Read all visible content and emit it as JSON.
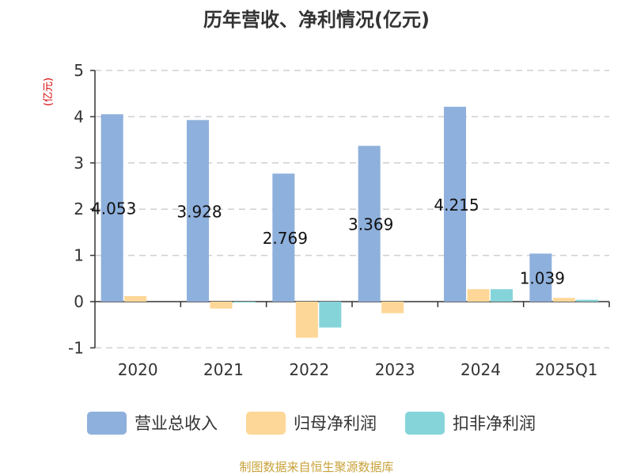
{
  "chart_data": {
    "type": "bar",
    "title": "历年营收、净利情况(亿元)",
    "unit_label": "(亿元)",
    "categories": [
      "2020",
      "2021",
      "2022",
      "2023",
      "2024",
      "2025Q1"
    ],
    "series": [
      {
        "name": "营业总收入",
        "color": "#8eb0dc",
        "values": [
          4.053,
          3.928,
          2.769,
          3.369,
          4.215,
          1.039
        ],
        "labels": [
          "4.053",
          "3.928",
          "2.769",
          "3.369",
          "4.215",
          "1.039"
        ]
      },
      {
        "name": "归母净利润",
        "color": "#fdd797",
        "values": [
          0.12,
          -0.15,
          -0.78,
          -0.25,
          0.27,
          0.08
        ]
      },
      {
        "name": "扣非净利润",
        "color": "#85d4d9",
        "values": [
          0.0,
          -0.02,
          -0.56,
          0.0,
          0.27,
          0.04
        ]
      }
    ],
    "yticks": [
      "-1",
      "0",
      "1",
      "2",
      "3",
      "4",
      "5"
    ],
    "ylim": [
      -1,
      5
    ],
    "grid": true,
    "legend_position": "bottom"
  },
  "source": "制图数据来自恒生聚源数据库"
}
